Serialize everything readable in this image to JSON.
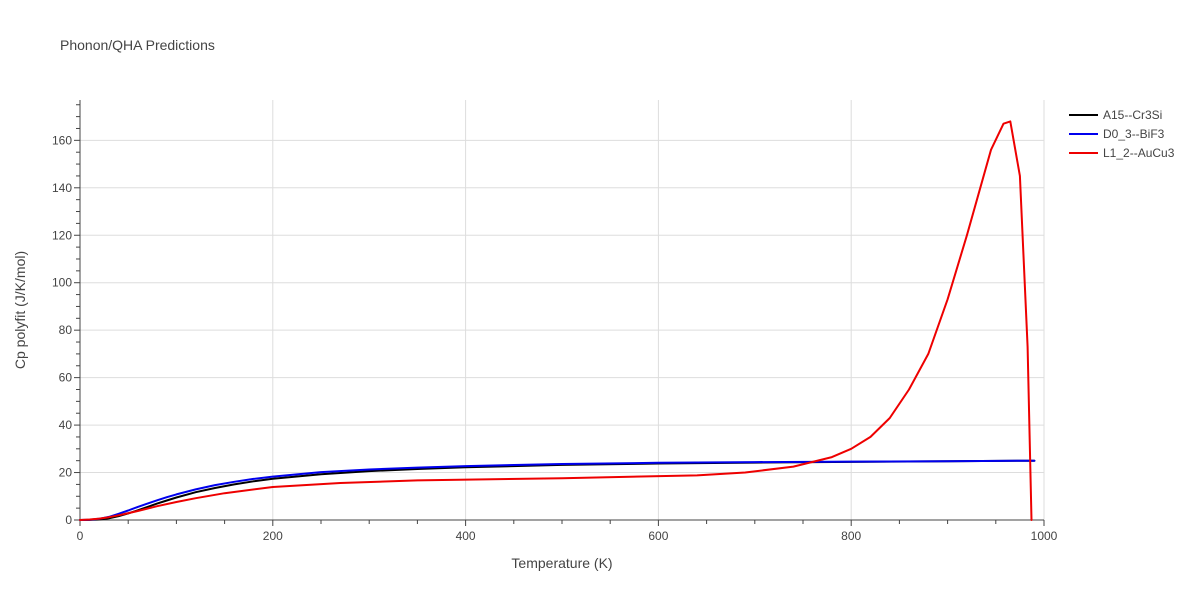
{
  "chart_data": {
    "type": "line",
    "title": "Phonon/QHA Predictions",
    "xlabel": "Temperature (K)",
    "ylabel": "Cp polyfit (J/K/mol)",
    "xlim": [
      0,
      1000
    ],
    "ylim": [
      0,
      177
    ],
    "xticks": [
      0,
      200,
      400,
      600,
      800,
      1000
    ],
    "yticks": [
      0,
      20,
      40,
      60,
      80,
      100,
      120,
      140,
      160
    ],
    "grid": true,
    "legend_position": "top-right",
    "series": [
      {
        "name": "A15--Cr3Si",
        "color": "#000000",
        "x": [
          0,
          10,
          20,
          30,
          40,
          50,
          60,
          70,
          80,
          90,
          100,
          120,
          140,
          160,
          180,
          200,
          250,
          300,
          350,
          400,
          500,
          600,
          700,
          800,
          900,
          990
        ],
        "y": [
          0,
          0.03,
          0.2,
          0.7,
          1.6,
          2.8,
          4.1,
          5.5,
          6.9,
          8.2,
          9.5,
          11.7,
          13.5,
          15.0,
          16.3,
          17.4,
          19.3,
          20.6,
          21.5,
          22.2,
          23.2,
          23.8,
          24.2,
          24.5,
          24.8,
          25.0
        ]
      },
      {
        "name": "D0_3--BiF3",
        "color": "#0000ee",
        "x": [
          0,
          10,
          20,
          30,
          40,
          50,
          60,
          70,
          80,
          90,
          100,
          120,
          140,
          160,
          180,
          200,
          250,
          300,
          350,
          400,
          500,
          600,
          700,
          800,
          900,
          990
        ],
        "y": [
          0,
          0.1,
          0.5,
          1.3,
          2.6,
          4.0,
          5.5,
          6.9,
          8.3,
          9.6,
          10.8,
          12.9,
          14.7,
          16.1,
          17.3,
          18.3,
          20.2,
          21.3,
          22.1,
          22.7,
          23.6,
          24.1,
          24.4,
          24.6,
          24.8,
          25.0
        ]
      },
      {
        "name": "L1_2--AuCu3",
        "color": "#ee0000",
        "x": [
          0,
          10,
          20,
          30,
          40,
          60,
          80,
          100,
          120,
          150,
          200,
          270,
          350,
          500,
          640,
          690,
          740,
          780,
          800,
          820,
          840,
          860,
          880,
          900,
          920,
          945,
          958,
          965,
          975,
          983,
          987
        ],
        "y": [
          0,
          0.2,
          0.6,
          1.2,
          2.0,
          3.8,
          5.8,
          7.6,
          9.2,
          11.3,
          13.9,
          15.6,
          16.7,
          17.6,
          18.8,
          20.0,
          22.5,
          26.5,
          30.0,
          35.0,
          43.0,
          55.0,
          70.0,
          93.0,
          120.0,
          156.0,
          167.0,
          168.0,
          145.0,
          73.0,
          0
        ]
      }
    ]
  }
}
